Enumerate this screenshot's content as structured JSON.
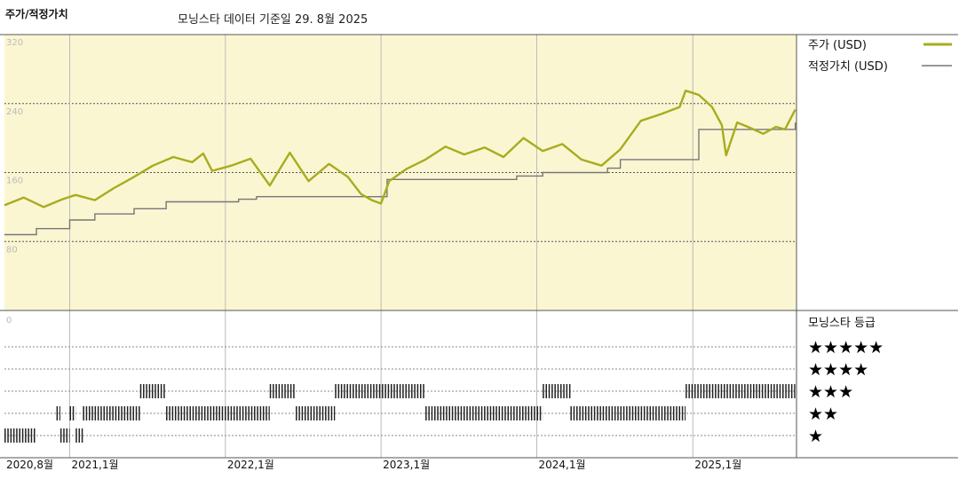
{
  "header": {
    "title": "주가/적정가치",
    "subtitle": "모닝스타 데이터 기준일 29. 8월 2025"
  },
  "colors": {
    "price_line": "#a8ac1e",
    "fair_value_line": "#777777",
    "panel_fill": "#faf6d2",
    "rating_bar": "#222222"
  },
  "chart_data": [
    {
      "type": "line",
      "series": [
        {
          "name": "주가 (USD)",
          "x": [
            "2020-08-01",
            "2020-09-15",
            "2020-11-01",
            "2020-12-15",
            "2021-01-15",
            "2021-03-01",
            "2021-04-15",
            "2021-06-01",
            "2021-07-15",
            "2021-09-01",
            "2021-10-15",
            "2021-11-10",
            "2021-12-01",
            "2022-01-15",
            "2022-03-01",
            "2022-04-15",
            "2022-06-01",
            "2022-07-15",
            "2022-09-01",
            "2022-10-15",
            "2022-11-15",
            "2022-12-10",
            "2023-01-01",
            "2023-01-20",
            "2023-03-01",
            "2023-04-15",
            "2023-06-01",
            "2023-07-15",
            "2023-09-01",
            "2023-10-15",
            "2023-12-01",
            "2024-01-15",
            "2024-03-01",
            "2024-04-15",
            "2024-06-01",
            "2024-07-15",
            "2024-09-01",
            "2024-10-20",
            "2024-12-01",
            "2024-12-15",
            "2025-01-15",
            "2025-02-15",
            "2025-03-10",
            "2025-03-20",
            "2025-04-15",
            "2025-05-15",
            "2025-06-15",
            "2025-07-15",
            "2025-08-05",
            "2025-08-29"
          ],
          "values": [
            122,
            131,
            120,
            129,
            134,
            128,
            142,
            155,
            168,
            178,
            172,
            182,
            162,
            168,
            176,
            145,
            183,
            150,
            170,
            155,
            135,
            128,
            124,
            150,
            164,
            175,
            190,
            181,
            189,
            178,
            200,
            185,
            193,
            175,
            168,
            187,
            220,
            228,
            236,
            255,
            250,
            236,
            215,
            180,
            218,
            212,
            205,
            213,
            210,
            233
          ]
        },
        {
          "name": "적정가치 (USD)",
          "x": [
            "2020-08-01",
            "2020-10-01",
            "2020-10-15",
            "2021-01-01",
            "2021-03-01",
            "2021-06-01",
            "2021-08-15",
            "2022-02-01",
            "2022-03-15",
            "2023-01-01",
            "2023-01-15",
            "2023-10-25",
            "2023-11-15",
            "2024-01-15",
            "2024-06-15",
            "2024-07-15",
            "2025-01-15",
            "2025-08-29"
          ],
          "values": [
            88,
            88,
            95,
            105,
            112,
            118,
            126,
            129,
            132,
            132,
            152,
            152,
            156,
            160,
            165,
            175,
            210,
            218
          ]
        }
      ],
      "ylim": [
        0,
        320
      ],
      "yticks": [
        "80",
        "160",
        "240",
        "320"
      ],
      "xlim": [
        "2020-08-01",
        "2025-09-01"
      ],
      "grid": true,
      "legend": "top-right"
    },
    {
      "type": "timeline",
      "title": "모닝스타 등급",
      "lowest_row_label": "0",
      "star_levels": [
        "★★★★★",
        "★★★★",
        "★★★",
        "★★",
        "★"
      ],
      "ratings": [
        {
          "from": "2020-08-01",
          "to": "2020-10-15",
          "stars": 1
        },
        {
          "from": "2020-12-01",
          "to": "2020-12-10",
          "stars": 2
        },
        {
          "from": "2020-12-10",
          "to": "2021-01-01",
          "stars": 1
        },
        {
          "from": "2021-01-01",
          "to": "2021-01-15",
          "stars": 2
        },
        {
          "from": "2021-01-15",
          "to": "2021-02-01",
          "stars": 1
        },
        {
          "from": "2021-02-01",
          "to": "2021-06-15",
          "stars": 2
        },
        {
          "from": "2021-06-15",
          "to": "2021-08-15",
          "stars": 3
        },
        {
          "from": "2021-08-15",
          "to": "2022-04-15",
          "stars": 2
        },
        {
          "from": "2022-04-15",
          "to": "2022-06-15",
          "stars": 3
        },
        {
          "from": "2022-06-15",
          "to": "2022-09-15",
          "stars": 2
        },
        {
          "from": "2022-09-15",
          "to": "2023-04-15",
          "stars": 3
        },
        {
          "from": "2023-04-15",
          "to": "2024-01-15",
          "stars": 2
        },
        {
          "from": "2024-01-15",
          "to": "2024-03-20",
          "stars": 3
        },
        {
          "from": "2024-03-20",
          "to": "2024-12-15",
          "stars": 2
        },
        {
          "from": "2024-12-15",
          "to": "2025-08-29",
          "stars": 3
        }
      ],
      "x_ticks": [
        {
          "date": "2020-08-01",
          "label": "2020,8월"
        },
        {
          "date": "2021-01-01",
          "label": "2021,1월"
        },
        {
          "date": "2022-01-01",
          "label": "2022,1월"
        },
        {
          "date": "2023-01-01",
          "label": "2023,1월"
        },
        {
          "date": "2024-01-01",
          "label": "2024,1월"
        },
        {
          "date": "2025-01-01",
          "label": "2025,1월"
        }
      ]
    }
  ]
}
